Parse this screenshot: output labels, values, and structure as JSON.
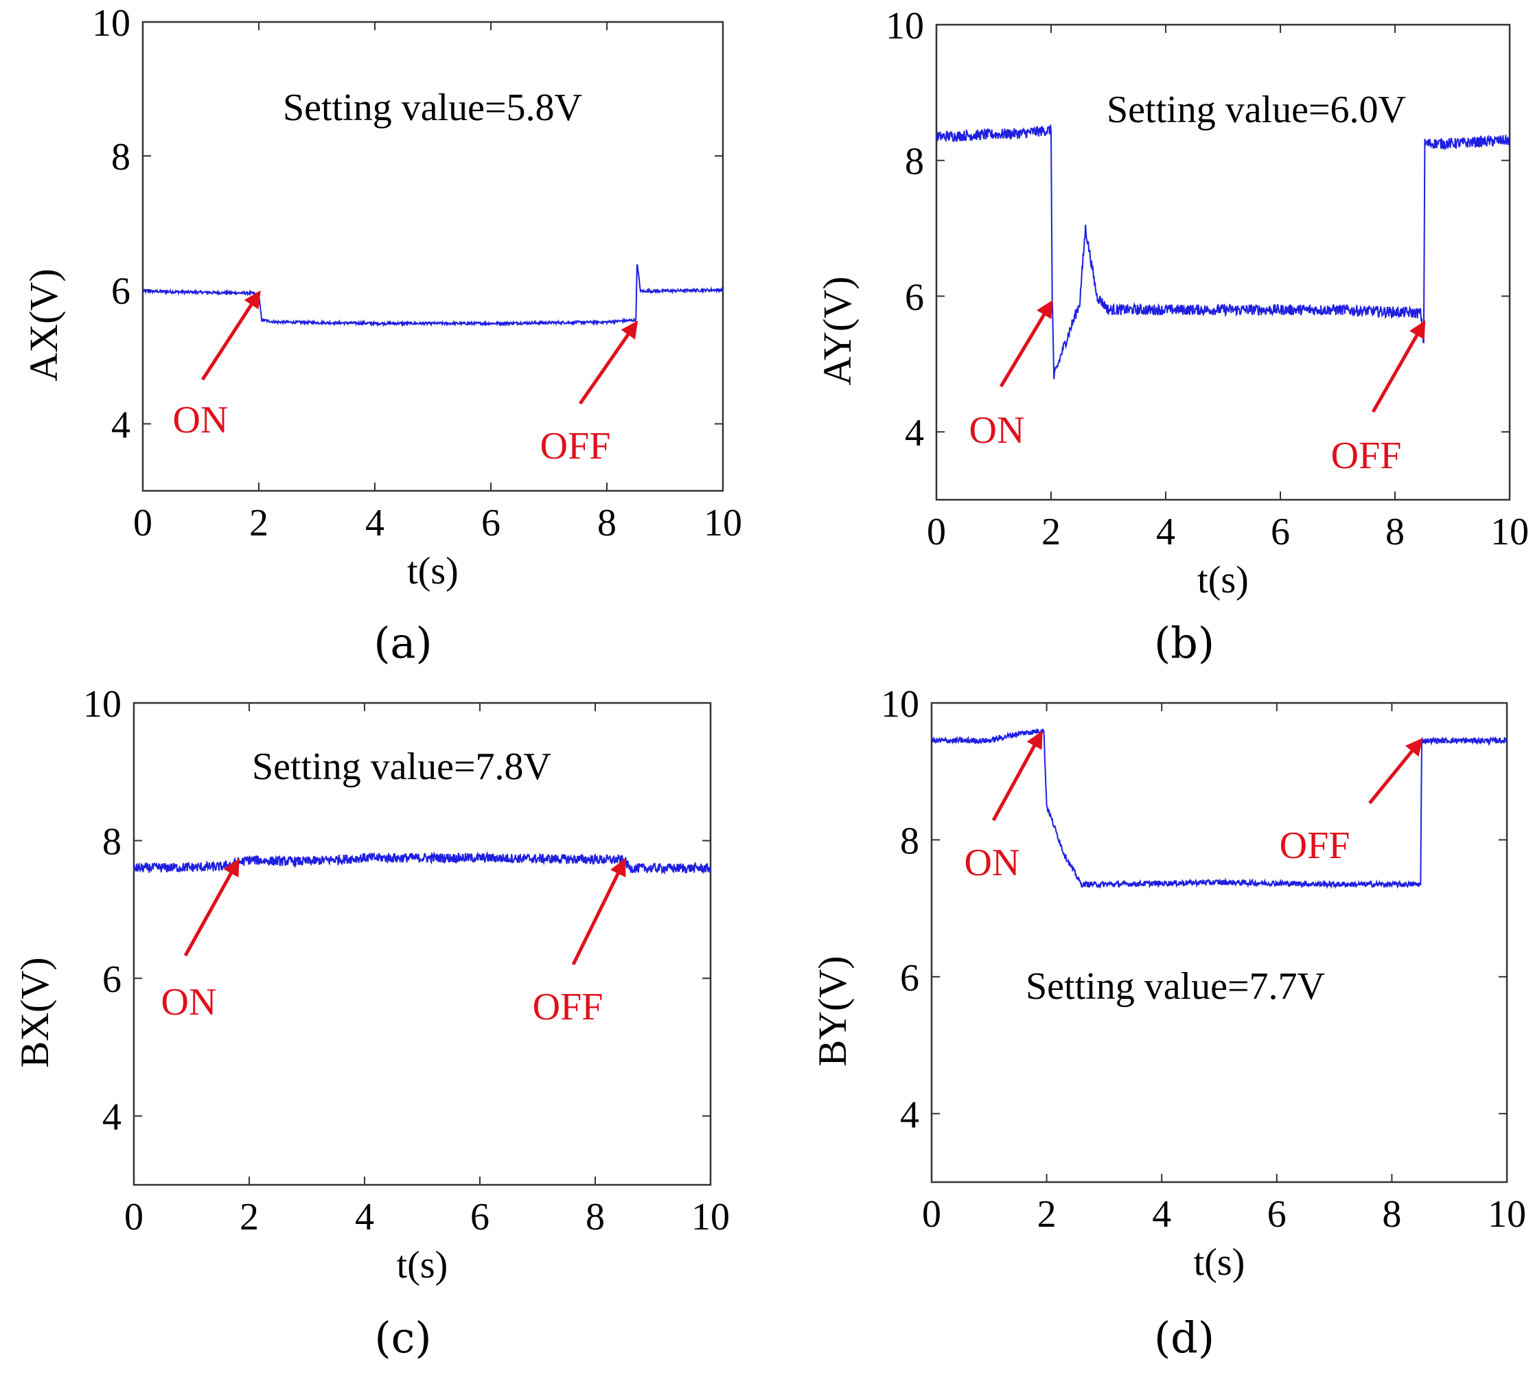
{
  "figure": {
    "panel_labels": [
      "(a)",
      "(b)",
      "(c)",
      "(d)"
    ]
  },
  "colors": {
    "signal": "#1f1fe0",
    "annotation": "#e0101c",
    "axis": "#333333",
    "text": "#000000"
  },
  "chart_data": [
    {
      "type": "line",
      "panel": "(a)",
      "title": "",
      "xlabel": "t(s)",
      "ylabel": "AX(V)",
      "xlim": [
        0,
        10
      ],
      "ylim": [
        3,
        10
      ],
      "xticks": [
        0,
        2,
        4,
        6,
        8,
        10
      ],
      "yticks": [
        4,
        6,
        8,
        10
      ],
      "grid": false,
      "annotation_text": "Setting value=5.8V",
      "markers": [
        {
          "label": "ON",
          "x": 2.0,
          "y": 5.95
        },
        {
          "label": "OFF",
          "x": 8.5,
          "y": 5.5
        }
      ],
      "series": [
        {
          "segments": [
            [
              0,
              5.98
            ],
            [
              1.9,
              5.95
            ],
            [
              2.0,
              5.92
            ],
            [
              2.05,
              5.55
            ],
            [
              2.3,
              5.52
            ],
            [
              4,
              5.5
            ],
            [
              6,
              5.5
            ],
            [
              8,
              5.52
            ],
            [
              8.5,
              5.55
            ],
            [
              8.52,
              6.4
            ],
            [
              8.58,
              5.98
            ],
            [
              10,
              6.0
            ]
          ],
          "noise": 0.02
        }
      ]
    },
    {
      "type": "line",
      "panel": "(b)",
      "title": "",
      "xlabel": "t(s)",
      "ylabel": "AY(V)",
      "xlim": [
        0,
        10
      ],
      "ylim": [
        3,
        10
      ],
      "xticks": [
        0,
        2,
        4,
        6,
        8,
        10
      ],
      "yticks": [
        4,
        6,
        8,
        10
      ],
      "grid": false,
      "annotation_text": "Setting value=6.0V",
      "markers": [
        {
          "label": "ON",
          "x": 2.0,
          "y": 5.9
        },
        {
          "label": "OFF",
          "x": 8.5,
          "y": 5.6
        }
      ],
      "series": [
        {
          "segments": [
            [
              0,
              8.35
            ],
            [
              1.5,
              8.4
            ],
            [
              2.0,
              8.45
            ],
            [
              2.02,
              6.0
            ],
            [
              2.05,
              4.8
            ],
            [
              2.2,
              5.2
            ],
            [
              2.5,
              5.9
            ],
            [
              2.6,
              7.0
            ],
            [
              2.8,
              6.0
            ],
            [
              3.0,
              5.8
            ],
            [
              5,
              5.8
            ],
            [
              7,
              5.8
            ],
            [
              8.45,
              5.75
            ],
            [
              8.5,
              5.3
            ],
            [
              8.52,
              8.25
            ],
            [
              9.0,
              8.25
            ],
            [
              10,
              8.3
            ]
          ],
          "noise": 0.08
        }
      ]
    },
    {
      "type": "line",
      "panel": "(c)",
      "title": "",
      "xlabel": "t(s)",
      "ylabel": "BX(V)",
      "xlim": [
        0,
        10
      ],
      "ylim": [
        3,
        10
      ],
      "xticks": [
        0,
        2,
        4,
        6,
        8,
        10
      ],
      "yticks": [
        4,
        6,
        8,
        10
      ],
      "grid": false,
      "annotation_text": "Setting value=7.8V",
      "markers": [
        {
          "label": "ON",
          "x": 1.8,
          "y": 7.7
        },
        {
          "label": "OFF",
          "x": 8.5,
          "y": 7.7
        }
      ],
      "series": [
        {
          "segments": [
            [
              0,
              7.6
            ],
            [
              1.5,
              7.62
            ],
            [
              2.0,
              7.72
            ],
            [
              2.5,
              7.7
            ],
            [
              3.0,
              7.7
            ],
            [
              4,
              7.75
            ],
            [
              6,
              7.75
            ],
            [
              8.5,
              7.72
            ],
            [
              8.6,
              7.6
            ],
            [
              10,
              7.6
            ]
          ],
          "noise": 0.07
        }
      ]
    },
    {
      "type": "line",
      "panel": "(d)",
      "title": "",
      "xlabel": "t(s)",
      "ylabel": "BY(V)",
      "xlim": [
        0,
        10
      ],
      "ylim": [
        3,
        10
      ],
      "xticks": [
        0,
        2,
        4,
        6,
        8,
        10
      ],
      "yticks": [
        4,
        6,
        8,
        10
      ],
      "grid": false,
      "annotation_text": "Setting value=7.7V",
      "markers": [
        {
          "label": "ON",
          "x": 1.9,
          "y": 9.55
        },
        {
          "label": "OFF",
          "x": 8.5,
          "y": 9.45
        }
      ],
      "series": [
        {
          "segments": [
            [
              0,
              9.45
            ],
            [
              1.0,
              9.45
            ],
            [
              1.5,
              9.55
            ],
            [
              1.95,
              9.6
            ],
            [
              2.0,
              8.5
            ],
            [
              2.3,
              7.8
            ],
            [
              2.6,
              7.35
            ],
            [
              3.0,
              7.35
            ],
            [
              5,
              7.38
            ],
            [
              7,
              7.35
            ],
            [
              8.5,
              7.35
            ],
            [
              8.52,
              9.45
            ],
            [
              10,
              9.45
            ]
          ],
          "noise": 0.04
        }
      ]
    }
  ]
}
